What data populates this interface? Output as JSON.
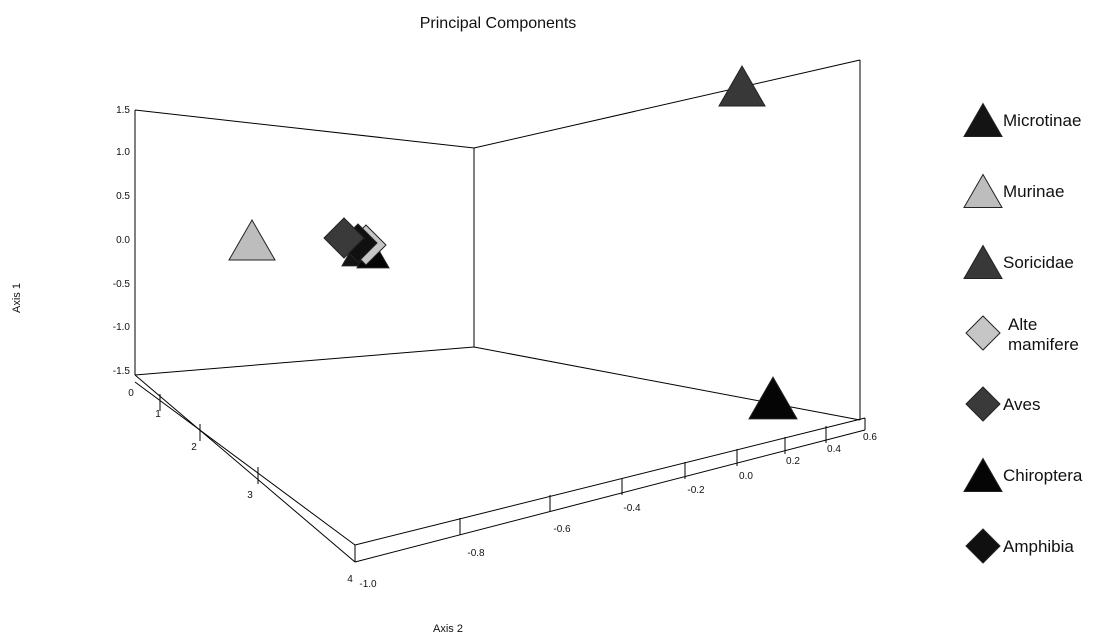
{
  "chart_data": {
    "type": "scatter",
    "title": "Principal Components",
    "ylabel": "Axis 1",
    "xlabel": "Axis 2",
    "zlabel": "",
    "yticks": [
      "1.5",
      "1.0",
      "0.5",
      "0.0",
      "-0.5",
      "-1.0",
      "-1.5"
    ],
    "xticks": [
      "-1.0",
      "-0.8",
      "-0.6",
      "-0.4",
      "-0.2",
      "0.0",
      "0.2",
      "0.4",
      "0.6"
    ],
    "zticks": [
      "0",
      "1",
      "2",
      "3",
      "4"
    ],
    "legend_position": "right",
    "series": [
      {
        "name": "Microtinae",
        "marker": "triangle",
        "color": "#141414"
      },
      {
        "name": "Murinae",
        "marker": "triangle",
        "color": "#bdbdbd"
      },
      {
        "name": "Soricidae",
        "marker": "triangle",
        "color": "#383838"
      },
      {
        "name": "Alte mamifere",
        "marker": "diamond",
        "color": "#c6c6c6"
      },
      {
        "name": "Aves",
        "marker": "diamond",
        "color": "#3a3a3a"
      },
      {
        "name": "Chiroptera",
        "marker": "triangle",
        "color": "#050505"
      },
      {
        "name": "Amphibia",
        "marker": "diamond",
        "color": "#101010"
      }
    ]
  }
}
